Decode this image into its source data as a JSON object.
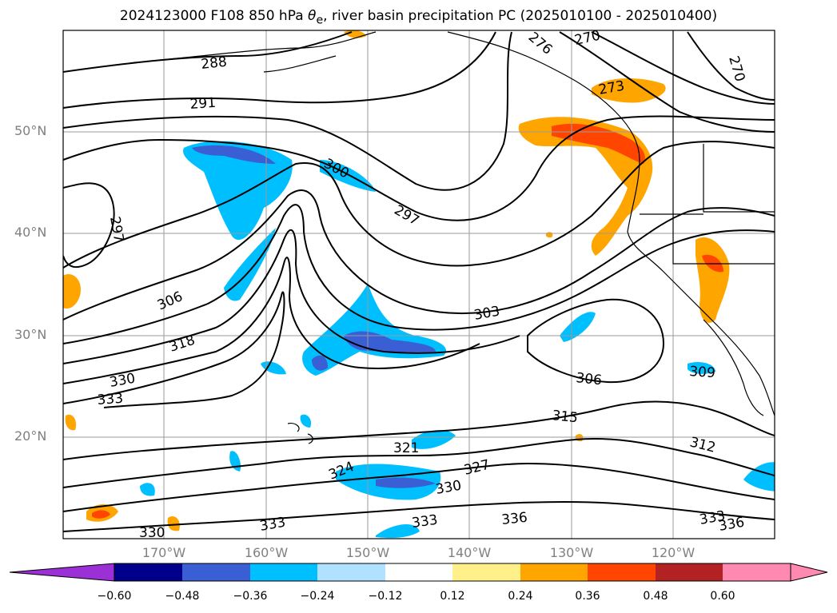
{
  "title": {
    "main": "2024123000 F108 850 hPa ",
    "theta": "θ",
    "sub": "e",
    "rest": ", river basin precipitation PC (2025010100 - 2025010400)"
  },
  "axes": {
    "lat_labels": [
      "50°N",
      "40°N",
      "30°N",
      "20°N"
    ],
    "lon_labels": [
      "170°W",
      "160°W",
      "150°W",
      "140°W",
      "130°W",
      "120°W"
    ]
  },
  "contour_labels": [
    "288",
    "291",
    "297",
    "300",
    "297",
    "306",
    "318",
    "330",
    "333",
    "303",
    "306",
    "315",
    "312",
    "309",
    "321",
    "324",
    "327",
    "330",
    "333",
    "333",
    "336",
    "336",
    "333",
    "330",
    "270",
    "270",
    "276",
    "273"
  ],
  "colorbar": {
    "ticks": [
      "−0.60",
      "−0.48",
      "−0.36",
      "−0.24",
      "−0.12",
      "0.12",
      "0.24",
      "0.36",
      "0.48",
      "0.60"
    ],
    "colors": [
      "#9b30d6",
      "#00008b",
      "#3a5fd4",
      "#00bfff",
      "#b0e2ff",
      "#ffffff",
      "#fff08a",
      "#ffa500",
      "#ff4500",
      "#b22222",
      "#ff89b0",
      "#ff89b0"
    ]
  }
}
